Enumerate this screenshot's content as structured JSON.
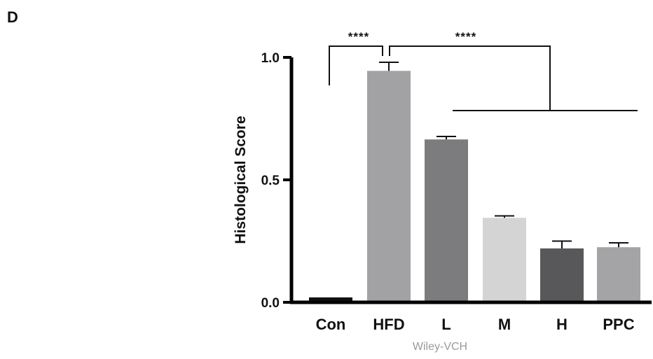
{
  "panel_label": "D",
  "watermark": "Wiley-VCH",
  "chart_data": {
    "type": "bar",
    "categories": [
      "Con",
      "HFD",
      "L",
      "M",
      "H",
      "PPC"
    ],
    "values": [
      0.02,
      0.945,
      0.665,
      0.345,
      0.22,
      0.225
    ],
    "errors": [
      0.0,
      0.035,
      0.012,
      0.008,
      0.03,
      0.018
    ],
    "colors": [
      "#111111",
      "#a2a2a4",
      "#7c7c7e",
      "#d4d4d4",
      "#58585a",
      "#a4a4a6"
    ],
    "ylabel": "Histological Score",
    "ylim": [
      0,
      1.0
    ],
    "yticks": [
      "0.0",
      "0.5",
      "1.0"
    ],
    "significance": [
      {
        "label": "****",
        "from": "Con",
        "to": "HFD"
      },
      {
        "label": "****",
        "from": "HFD",
        "to": [
          "L",
          "M",
          "H",
          "PPC"
        ]
      }
    ],
    "grid": false,
    "legend": "none"
  }
}
